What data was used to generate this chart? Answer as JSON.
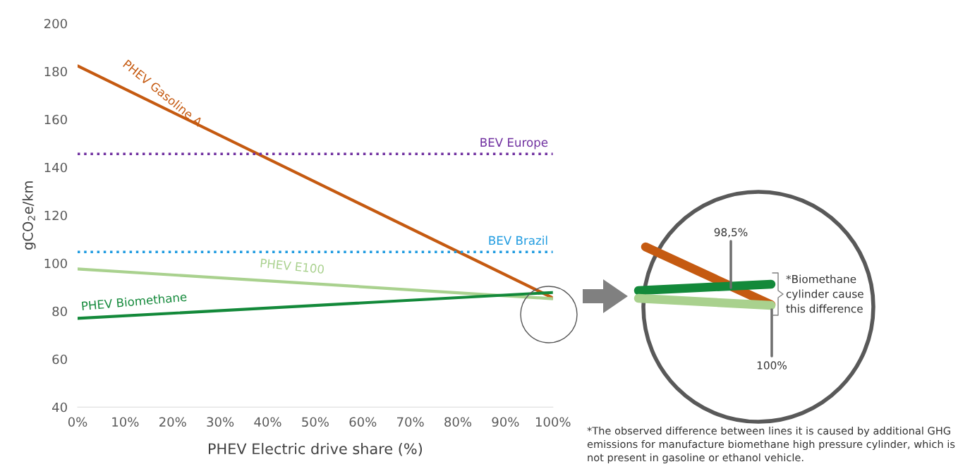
{
  "chart_data": {
    "type": "line",
    "xlabel": "PHEV Electric drive share (%)",
    "ylabel": "gCO$_{2}$e/km",
    "x": [
      0,
      100
    ],
    "series": [
      {
        "name": "PHEV Gasoline A",
        "color": "#c55a11",
        "values": [
          182.3,
          85.5
        ]
      },
      {
        "name": "PHEV E100",
        "color": "#a9d18e",
        "values": [
          97.6,
          85.2
        ]
      },
      {
        "name": "PHEV Biomethane",
        "color": "#13893a",
        "values": [
          77.0,
          87.8
        ]
      }
    ],
    "ref_lines": [
      {
        "axis": "y",
        "value": 145.6,
        "label": "BEV Europe",
        "color": "#7030a0",
        "line_style": "dotted"
      },
      {
        "axis": "y",
        "value": 104.7,
        "label": "BEV Brazil",
        "color": "#1f9be0",
        "line_style": "dotted"
      }
    ],
    "xlim": [
      0,
      100
    ],
    "xticks": [
      {
        "value": 0,
        "label": "0%"
      },
      {
        "value": 10,
        "label": "10%"
      },
      {
        "value": 20,
        "label": "20%"
      },
      {
        "value": 30,
        "label": "30%"
      },
      {
        "value": 40,
        "label": "40%"
      },
      {
        "value": 50,
        "label": "50%"
      },
      {
        "value": 60,
        "label": "60%"
      },
      {
        "value": 70,
        "label": "70%"
      },
      {
        "value": 80,
        "label": "80%"
      },
      {
        "value": 90,
        "label": "90%"
      },
      {
        "value": 100,
        "label": "100%"
      }
    ],
    "ylim": [
      40,
      200
    ],
    "yticks": [
      40,
      60,
      80,
      100,
      120,
      140,
      160,
      180,
      200
    ],
    "grid": false,
    "legend": false,
    "marker": "none",
    "line_style": "solid",
    "annotations": [
      "98,5%",
      "100%",
      "*Biomethane",
      "cylinder cause",
      "this difference",
      "*The observed difference between lines it is caused by additional GHG",
      "emissions for manufacture biomethane high pressure cylinder, which is",
      "not present in gasoline or ethanol vehicle."
    ]
  }
}
